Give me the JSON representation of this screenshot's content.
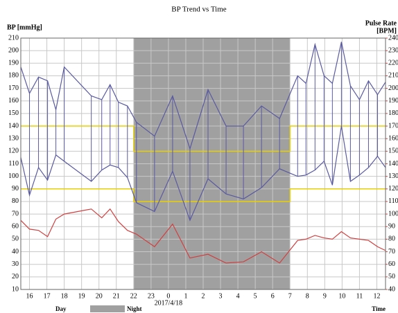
{
  "chart_data": {
    "type": "line",
    "title": "BP Trend vs Time",
    "ylabel": "BP [mmHg]",
    "y2label": [
      "Pulse Rate",
      "[BPM]"
    ],
    "xlabel": "Time",
    "date_annotation": {
      "x": 24,
      "text": "2017/4/18"
    },
    "legend": [
      {
        "label": "Day",
        "color": "#ffffff"
      },
      {
        "label": "Night",
        "color": "#a0a0a0"
      }
    ],
    "night": {
      "start": 22,
      "end": 31,
      "color": "#a0a0a0"
    },
    "thresholds": {
      "color": "#e8d000",
      "day": [
        140,
        90
      ],
      "night": [
        120,
        80
      ]
    },
    "x": [
      15.5,
      16.0,
      16.52,
      17.04,
      17.52,
      18.0,
      19.56,
      20.16,
      20.64,
      21.12,
      21.64,
      22.16,
      23.2,
      24.24,
      25.24,
      26.28,
      27.32,
      28.32,
      29.36,
      30.4,
      31.44,
      31.92,
      32.44,
      32.96,
      33.44,
      33.96,
      34.48,
      35.0,
      35.52,
      36.04,
      36.5
    ],
    "series": [
      {
        "color": "#5a5aa0",
        "values": [
          187,
          166,
          179,
          176,
          153,
          187,
          164,
          161,
          173,
          159,
          156,
          143,
          132,
          164,
          122,
          169,
          140,
          140,
          156,
          146,
          180,
          174,
          205,
          180,
          174,
          207,
          172,
          161,
          176,
          165,
          175
        ]
      },
      {
        "color": "#5a5aa0",
        "values": [
          115,
          85,
          107,
          97,
          117,
          112,
          96,
          105,
          109,
          107,
          99,
          79,
          72,
          104,
          65,
          98,
          86,
          82,
          91,
          106,
          100,
          101,
          105,
          112,
          93,
          140,
          96,
          101,
          107,
          116,
          107
        ]
      },
      {
        "color": "#d04040",
        "axis": "y2",
        "values": [
          95,
          88,
          87,
          82,
          96,
          100,
          104,
          97,
          104,
          94,
          87,
          84,
          74,
          92,
          65,
          68,
          61,
          62,
          70,
          61,
          79,
          80,
          83,
          81,
          80,
          86,
          81,
          80,
          79,
          74,
          71
        ]
      }
    ],
    "xlim": [
      15.5,
      36.5
    ],
    "xticks": [
      16,
      17,
      18,
      19,
      20,
      21,
      22,
      23,
      {
        "value": 24,
        "label": "0"
      },
      {
        "value": 25,
        "label": "1"
      },
      {
        "value": 26,
        "label": "2"
      },
      {
        "value": 27,
        "label": "3"
      },
      {
        "value": 28,
        "label": "4"
      },
      {
        "value": 29,
        "label": "5"
      },
      {
        "value": 30,
        "label": "6"
      },
      {
        "value": 31,
        "label": "7"
      },
      {
        "value": 32,
        "label": "8"
      },
      {
        "value": 33,
        "label": "9"
      },
      {
        "value": 34,
        "label": "10"
      },
      {
        "value": 35,
        "label": "11"
      },
      {
        "value": 36,
        "label": "12"
      }
    ],
    "ylim": [
      10,
      210
    ],
    "yticks": [
      10,
      20,
      30,
      40,
      50,
      60,
      70,
      80,
      90,
      100,
      110,
      120,
      130,
      140,
      150,
      160,
      170,
      180,
      190,
      200,
      210
    ],
    "y2lim": [
      40,
      240
    ],
    "y2ticks": [
      40,
      50,
      60,
      70,
      80,
      90,
      100,
      110,
      120,
      130,
      140,
      150,
      160,
      170,
      180,
      190,
      200,
      210,
      220,
      230,
      240
    ],
    "y2color": "#d04040",
    "grid": true
  }
}
